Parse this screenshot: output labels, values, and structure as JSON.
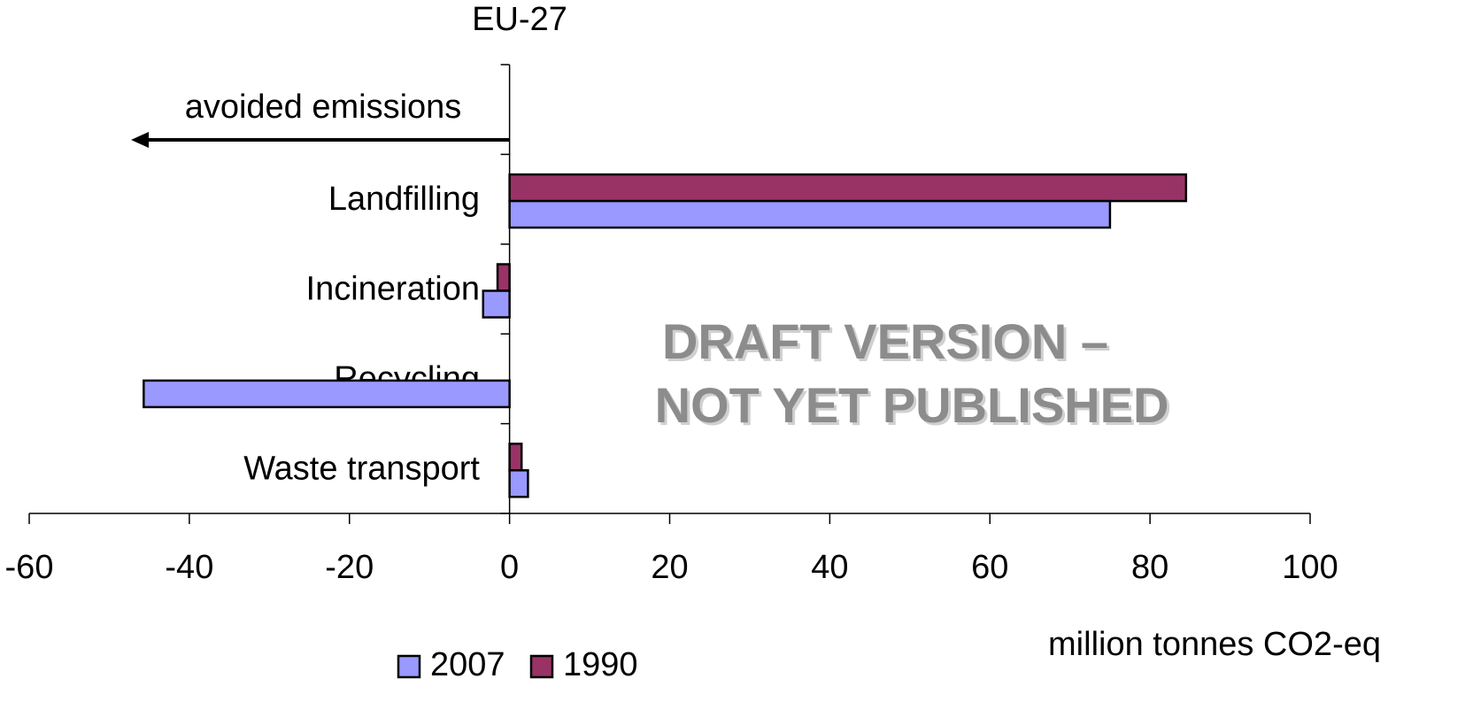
{
  "chart_data": {
    "type": "bar",
    "orientation": "horizontal",
    "title": "EU-27",
    "categories": [
      null,
      "Landfilling",
      "Incineration",
      "Recycling",
      "Waste transport"
    ],
    "series": [
      {
        "name": "2007",
        "color": "#9999ff",
        "values": [
          null,
          75,
          -3.3,
          -45.7,
          2.3
        ]
      },
      {
        "name": "1990",
        "color": "#993366",
        "values": [
          null,
          84.5,
          -1.5,
          null,
          1.5
        ]
      }
    ],
    "xlim": [
      -60,
      100
    ],
    "xticks": [
      -60,
      -40,
      -20,
      0,
      20,
      40,
      60,
      80,
      100
    ],
    "xlabel": "million tonnes CO2-eq",
    "annotations": [
      "avoided emissions"
    ],
    "watermark": [
      "DRAFT VERSION –",
      "NOT YET  PUBLISHED"
    ],
    "legend": "bottom"
  }
}
